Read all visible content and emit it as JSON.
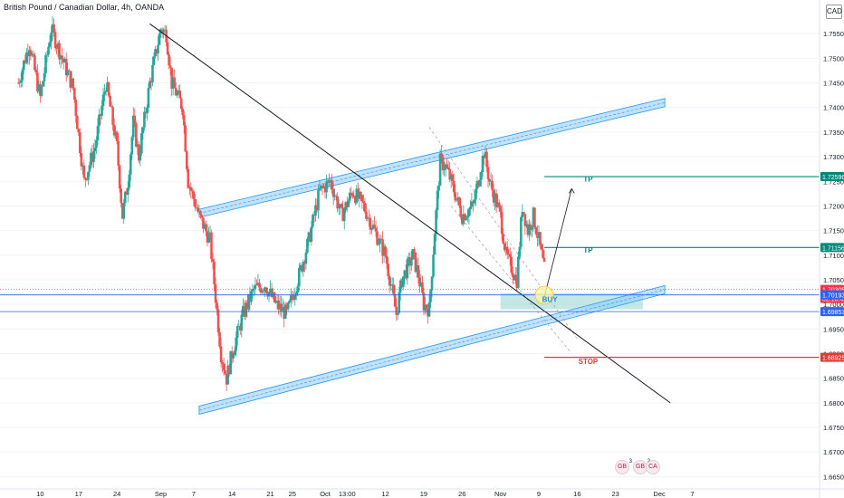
{
  "header": {
    "title_parts": [
      "British Pound / Canadian Dollar",
      "4h",
      "OANDA"
    ],
    "currency_badge": "CAD"
  },
  "chart_data": {
    "type": "candlestick",
    "instrument": "British Pound / Canadian Dollar",
    "timeframe": "4h",
    "source": "OANDA",
    "ylim": [
      1.6625,
      1.76
    ],
    "y_ticks": [
      1.755,
      1.75,
      1.745,
      1.74,
      1.735,
      1.73,
      1.725,
      1.72,
      1.715,
      1.71,
      1.705,
      1.7,
      1.695,
      1.69,
      1.685,
      1.68,
      1.675,
      1.67,
      1.665
    ],
    "x_ticks": [
      {
        "label": "10",
        "date": "2020-08-10"
      },
      {
        "label": "17",
        "date": "2020-08-17"
      },
      {
        "label": "24",
        "date": "2020-08-24"
      },
      {
        "label": "Sep",
        "date": "2020-09-01"
      },
      {
        "label": "7",
        "date": "2020-09-07"
      },
      {
        "label": "14",
        "date": "2020-09-14"
      },
      {
        "label": "21",
        "date": "2020-09-21"
      },
      {
        "label": "25",
        "date": "2020-09-25"
      },
      {
        "label": "Oct",
        "date": "2020-10-01"
      },
      {
        "label": "13:00",
        "date": "2020-10-05"
      },
      {
        "label": "12",
        "date": "2020-10-12"
      },
      {
        "label": "19",
        "date": "2020-10-19"
      },
      {
        "label": "26",
        "date": "2020-10-26"
      },
      {
        "label": "Nov",
        "date": "2020-11-02"
      },
      {
        "label": "9",
        "date": "2020-11-09"
      },
      {
        "label": "16",
        "date": "2020-11-16"
      },
      {
        "label": "23",
        "date": "2020-11-23"
      },
      {
        "label": "Dec",
        "date": "2020-12-01"
      },
      {
        "label": "7",
        "date": "2020-12-07"
      }
    ],
    "price_path": [
      [
        "2020-08-06",
        1.745
      ],
      [
        "2020-08-08",
        1.753
      ],
      [
        "2020-08-10",
        1.742
      ],
      [
        "2020-08-12",
        1.756
      ],
      [
        "2020-08-14",
        1.75
      ],
      [
        "2020-08-16",
        1.744
      ],
      [
        "2020-08-18",
        1.725
      ],
      [
        "2020-08-20",
        1.732
      ],
      [
        "2020-08-22",
        1.745
      ],
      [
        "2020-08-24",
        1.732
      ],
      [
        "2020-08-25",
        1.718
      ],
      [
        "2020-08-26",
        1.725
      ],
      [
        "2020-08-27",
        1.737
      ],
      [
        "2020-08-28",
        1.73
      ],
      [
        "2020-08-30",
        1.745
      ],
      [
        "2020-09-01",
        1.756
      ],
      [
        "2020-09-02",
        1.755
      ],
      [
        "2020-09-03",
        1.745
      ],
      [
        "2020-09-05",
        1.74
      ],
      [
        "2020-09-06",
        1.725
      ],
      [
        "2020-09-08",
        1.718
      ],
      [
        "2020-09-10",
        1.713
      ],
      [
        "2020-09-12",
        1.69
      ],
      [
        "2020-09-13",
        1.685
      ],
      [
        "2020-09-14",
        1.69
      ],
      [
        "2020-09-16",
        1.698
      ],
      [
        "2020-09-18",
        1.703
      ],
      [
        "2020-09-20",
        1.704
      ],
      [
        "2020-09-22",
        1.7
      ],
      [
        "2020-09-24",
        1.698
      ],
      [
        "2020-09-26",
        1.705
      ],
      [
        "2020-09-28",
        1.713
      ],
      [
        "2020-09-30",
        1.723
      ],
      [
        "2020-10-02",
        1.725
      ],
      [
        "2020-10-04",
        1.718
      ],
      [
        "2020-10-06",
        1.723
      ],
      [
        "2020-10-08",
        1.72
      ],
      [
        "2020-10-10",
        1.715
      ],
      [
        "2020-10-12",
        1.71
      ],
      [
        "2020-10-13",
        1.704
      ],
      [
        "2020-10-14",
        1.698
      ],
      [
        "2020-10-15",
        1.705
      ],
      [
        "2020-10-17",
        1.71
      ],
      [
        "2020-10-18",
        1.706
      ],
      [
        "2020-10-19",
        1.7
      ],
      [
        "2020-10-20",
        1.699
      ],
      [
        "2020-10-21",
        1.715
      ],
      [
        "2020-10-22",
        1.729
      ],
      [
        "2020-10-23",
        1.728
      ],
      [
        "2020-10-24",
        1.725
      ],
      [
        "2020-10-26",
        1.718
      ],
      [
        "2020-10-28",
        1.72
      ],
      [
        "2020-10-30",
        1.731
      ],
      [
        "2020-10-31",
        1.725
      ],
      [
        "2020-11-02",
        1.718
      ],
      [
        "2020-11-03",
        1.71
      ],
      [
        "2020-11-05",
        1.705
      ],
      [
        "2020-11-06",
        1.72
      ],
      [
        "2020-11-07",
        1.715
      ],
      [
        "2020-11-08",
        1.718
      ],
      [
        "2020-11-09",
        1.713
      ],
      [
        "2020-11-10",
        1.707
      ]
    ],
    "annotations": {
      "resistance_level": {
        "value": 1.72596,
        "label": "1.72596"
      },
      "take_profit_level": {
        "value": 1.71156,
        "label": "1.71156"
      },
      "stop_level": {
        "value": 1.68925,
        "label": "1.68925"
      },
      "last_price": {
        "value": 1.70305,
        "label": "1.70305"
      },
      "countdown": "02:18:45",
      "upper_horizontal": {
        "value": 1.70193,
        "label": "1.70193"
      },
      "lower_horizontal": {
        "value": 1.69853,
        "label": "1.69853"
      },
      "text_labels": [
        {
          "text": "TP",
          "date": "2020-11-18",
          "price": 1.72496
        },
        {
          "text": "TP",
          "date": "2020-11-18",
          "price": 1.71056
        },
        {
          "text": "BUY",
          "date": "2020-11-11",
          "price": 1.7005
        },
        {
          "text": "STOP",
          "date": "2020-11-18",
          "price": 1.6879
        }
      ],
      "channels": [
        {
          "name": "descending channel upper",
          "from": [
            "2020-09-08",
            1.7185
          ],
          "to": [
            "2020-12-02",
            1.741
          ]
        },
        {
          "name": "descending channel lower",
          "from": [
            "2020-09-08",
            1.6785
          ],
          "to": [
            "2020-12-02",
            1.703
          ]
        }
      ],
      "trendline": {
        "from": [
          "2020-08-30",
          1.757
        ],
        "to": [
          "2020-12-03",
          1.68
        ]
      },
      "projection_arrow": {
        "from": [
          "2020-11-10",
          1.7015
        ],
        "to": [
          "2020-11-15",
          1.7235
        ]
      },
      "buy_zone": {
        "x1": "2020-11-02",
        "x2": "2020-11-28",
        "y1": 1.699,
        "y2": 1.7023
      },
      "entry_circle": {
        "date": "2020-11-10",
        "price": 1.7015
      }
    },
    "colors": {
      "up": "#26a69a",
      "down": "#ef5350",
      "channel": "#90caf9",
      "channel_edge": "#2196f3",
      "tp": "#00897b",
      "stop": "#e53935",
      "last": "#f23645",
      "hline": "#2962ff",
      "trend": "#131722"
    }
  },
  "events": [
    {
      "name": "economic-event-flag-gb",
      "count": "3"
    },
    {
      "name": "economic-event-flag-gb-2",
      "count": "2"
    },
    {
      "name": "economic-event-flag-ca",
      "count": ""
    }
  ]
}
